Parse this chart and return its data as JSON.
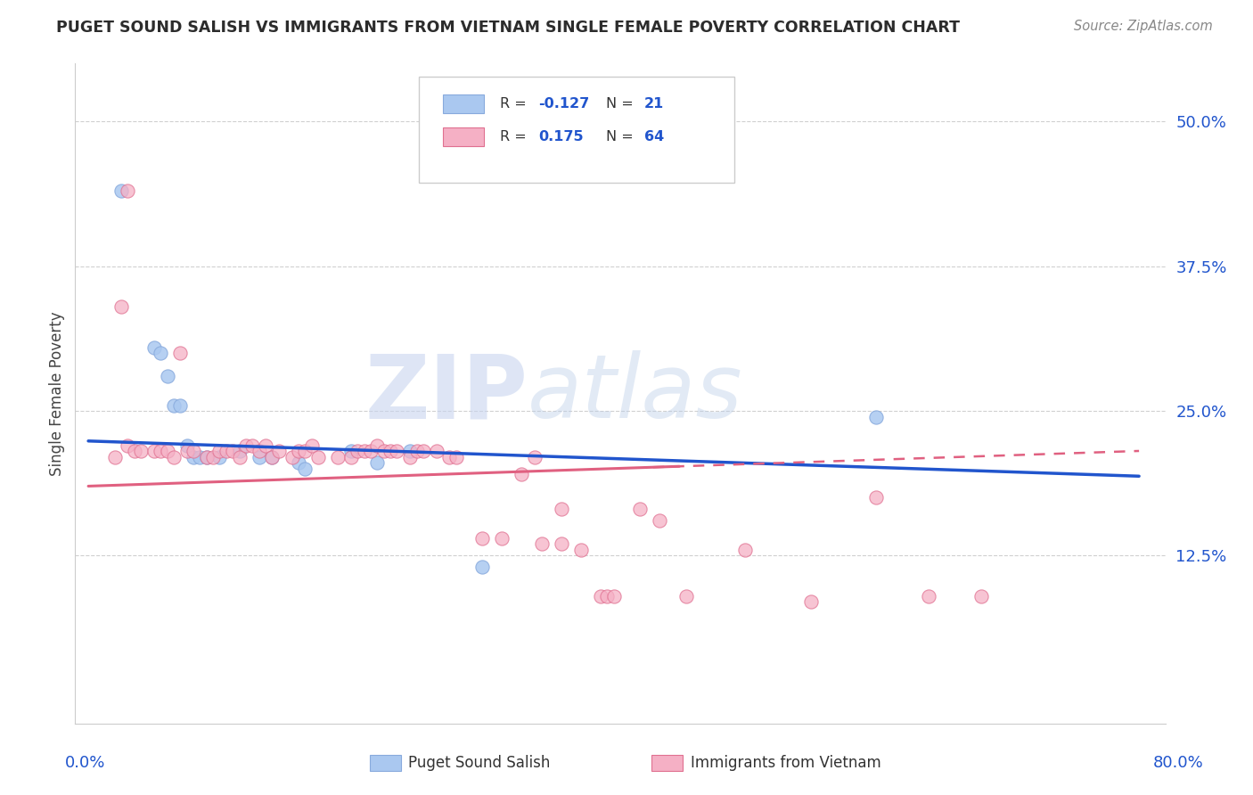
{
  "title": "PUGET SOUND SALISH VS IMMIGRANTS FROM VIETNAM SINGLE FEMALE POVERTY CORRELATION CHART",
  "source": "Source: ZipAtlas.com",
  "ylabel": "Single Female Poverty",
  "xlim": [
    0.0,
    0.8
  ],
  "ylim": [
    0.0,
    0.53
  ],
  "watermark_zip": "ZIP",
  "watermark_atlas": "atlas",
  "ytick_vals": [
    0.0,
    0.125,
    0.25,
    0.375,
    0.5
  ],
  "ytick_labels": [
    "",
    "12.5%",
    "25.0%",
    "37.5%",
    "50.0%"
  ],
  "title_color": "#2c2c2c",
  "source_color": "#888888",
  "axis_label_color": "#2155cd",
  "grid_color": "#d0d0d0",
  "background_color": "#ffffff",
  "blue_color": "#aac8f0",
  "blue_edge": "#88aadd",
  "blue_line_color": "#2155cd",
  "pink_color": "#f5b0c5",
  "pink_edge": "#e07090",
  "pink_line_color": "#e06080",
  "blue_x": [
    0.025,
    0.05,
    0.055,
    0.06,
    0.065,
    0.07,
    0.075,
    0.08,
    0.085,
    0.09,
    0.1,
    0.115,
    0.13,
    0.14,
    0.16,
    0.165,
    0.2,
    0.22,
    0.245,
    0.6,
    0.3
  ],
  "blue_y": [
    0.44,
    0.305,
    0.3,
    0.28,
    0.255,
    0.255,
    0.22,
    0.21,
    0.21,
    0.21,
    0.21,
    0.215,
    0.21,
    0.21,
    0.205,
    0.2,
    0.215,
    0.205,
    0.215,
    0.245,
    0.115
  ],
  "pink_x": [
    0.02,
    0.03,
    0.035,
    0.04,
    0.05,
    0.055,
    0.06,
    0.065,
    0.07,
    0.075,
    0.08,
    0.09,
    0.095,
    0.1,
    0.105,
    0.11,
    0.115,
    0.12,
    0.125,
    0.13,
    0.135,
    0.14,
    0.145,
    0.155,
    0.16,
    0.165,
    0.17,
    0.175,
    0.19,
    0.2,
    0.205,
    0.21,
    0.215,
    0.22,
    0.225,
    0.23,
    0.235,
    0.245,
    0.25,
    0.255,
    0.265,
    0.275,
    0.28,
    0.3,
    0.315,
    0.345,
    0.36,
    0.375,
    0.39,
    0.395,
    0.4,
    0.455,
    0.36,
    0.42,
    0.435,
    0.5,
    0.55,
    0.6,
    0.64,
    0.68,
    0.025,
    0.03,
    0.33,
    0.34
  ],
  "pink_y": [
    0.21,
    0.22,
    0.215,
    0.215,
    0.215,
    0.215,
    0.215,
    0.21,
    0.3,
    0.215,
    0.215,
    0.21,
    0.21,
    0.215,
    0.215,
    0.215,
    0.21,
    0.22,
    0.22,
    0.215,
    0.22,
    0.21,
    0.215,
    0.21,
    0.215,
    0.215,
    0.22,
    0.21,
    0.21,
    0.21,
    0.215,
    0.215,
    0.215,
    0.22,
    0.215,
    0.215,
    0.215,
    0.21,
    0.215,
    0.215,
    0.215,
    0.21,
    0.21,
    0.14,
    0.14,
    0.135,
    0.135,
    0.13,
    0.09,
    0.09,
    0.09,
    0.09,
    0.165,
    0.165,
    0.155,
    0.13,
    0.085,
    0.175,
    0.09,
    0.09,
    0.34,
    0.44,
    0.195,
    0.21
  ]
}
